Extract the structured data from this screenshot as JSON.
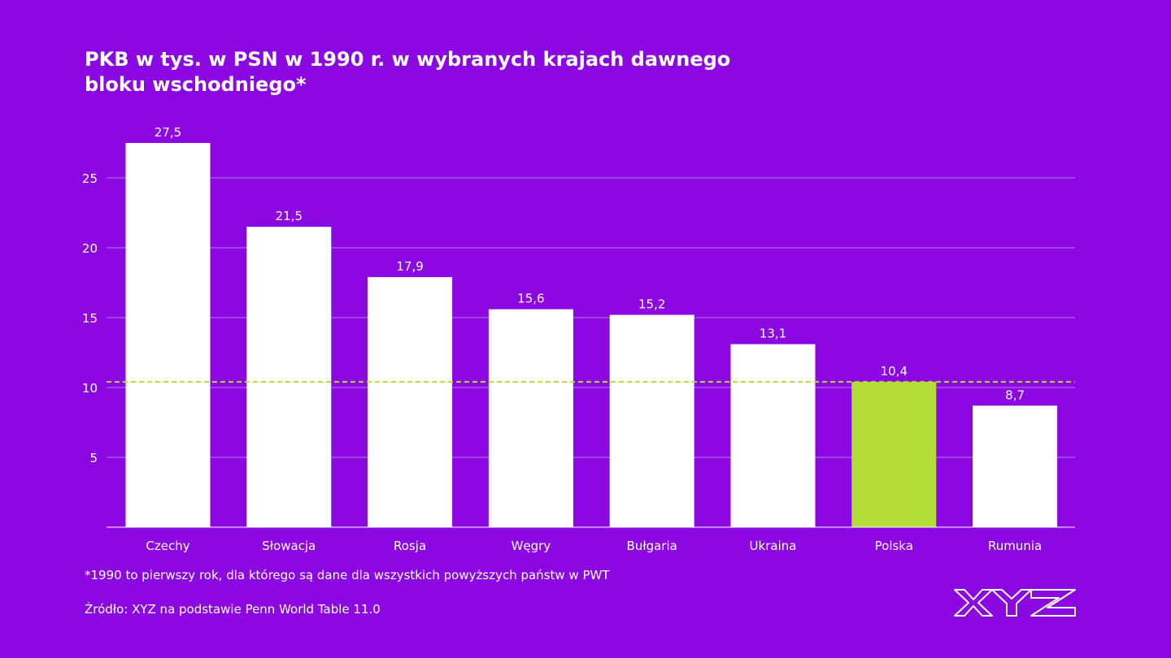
{
  "colors": {
    "background": "#8b08e2",
    "bar": "#ffffff",
    "highlight": "#b2df35",
    "reference_line": "#b2df35",
    "grid": "#b07de8"
  },
  "chart_data": {
    "type": "bar",
    "title": "PKB w tys. w PSN w 1990 r. w wybranych krajach dawnego bloku wschodniego*",
    "categories": [
      "Czechy",
      "Słowacja",
      "Rosja",
      "Węgry",
      "Bułgaria",
      "Ukraina",
      "Polska",
      "Rumunia"
    ],
    "values": [
      27.5,
      21.5,
      17.9,
      15.6,
      15.2,
      13.1,
      10.4,
      8.7
    ],
    "value_labels": [
      "27,5",
      "21,5",
      "17,9",
      "15,6",
      "15,2",
      "13,1",
      "10,4",
      "8,7"
    ],
    "highlight_category": "Polska",
    "reference_line_value": 10.4,
    "reference_line_style": "dashed",
    "y_ticks": [
      5,
      10,
      15,
      20,
      25
    ],
    "ylim": [
      0,
      27.5
    ],
    "grid": true,
    "xlabel": "",
    "ylabel": ""
  },
  "footnote": "*1990 to pierwszy rok, dla którego są dane dla wszystkich powyższych państw w PWT",
  "source": "Źródło: XYZ na podstawie Penn World Table 11.0",
  "logo_text": "XYZ"
}
